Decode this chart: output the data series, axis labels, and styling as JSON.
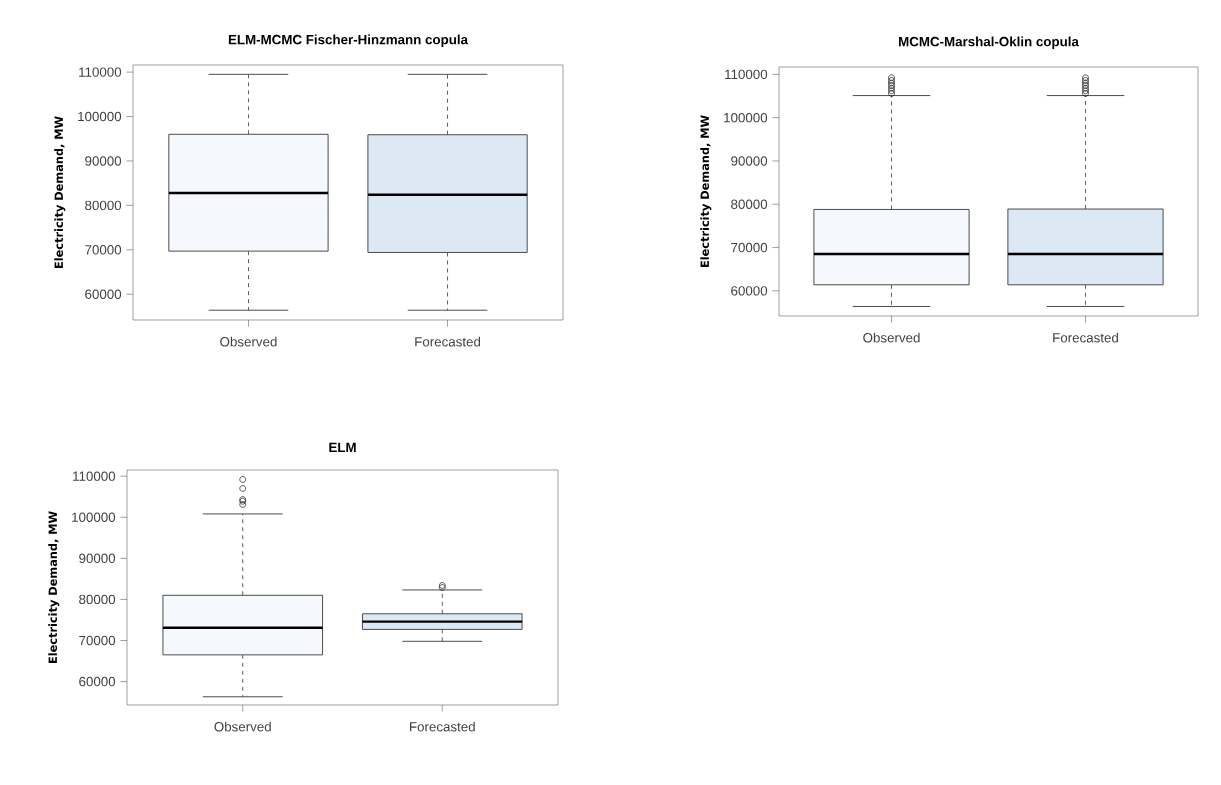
{
  "chart_data": [
    {
      "type": "box",
      "title": "ELM-MCMC Fischer-Hinzmann copula",
      "ylabel": "Electricity Demand, MW",
      "categories": [
        "Observed",
        "Forecasted"
      ],
      "ylim": [
        54200,
        111600
      ],
      "yticks": [
        60000,
        70000,
        80000,
        90000,
        100000,
        110000
      ],
      "colors": [
        "#f5f8fd",
        "#dde8f5"
      ],
      "boxes": [
        {
          "low": 56400,
          "q1": 69700,
          "median": 82800,
          "q3": 96000,
          "high": 109500
        },
        {
          "low": 56400,
          "q1": 69400,
          "median": 82400,
          "q3": 95900,
          "high": 109500
        }
      ]
    },
    {
      "type": "box",
      "title": "MCMC-Marshal-Oklin copula",
      "ylabel": "Electricity Demand, MW",
      "categories": [
        "Observed",
        "Forecasted"
      ],
      "ylim": [
        54200,
        111700
      ],
      "yticks": [
        60000,
        70000,
        80000,
        90000,
        100000,
        110000
      ],
      "colors": [
        "#f5f8fd",
        "#dde8f5"
      ],
      "boxes": [
        {
          "low": 56400,
          "q1": 61400,
          "median": 68500,
          "q3": 78800,
          "high": 105100,
          "outliers": [
            105600,
            106200,
            106800,
            107400,
            108000,
            108600,
            109200
          ]
        },
        {
          "low": 56400,
          "q1": 61400,
          "median": 68500,
          "q3": 78900,
          "high": 105100,
          "outliers": [
            105600,
            106200,
            106800,
            107400,
            108000,
            108600,
            109200
          ]
        }
      ]
    },
    {
      "type": "box",
      "title": "ELM",
      "ylabel": "Electricity Demand, MW",
      "categories": [
        "Observed",
        "Forecasted"
      ],
      "ylim": [
        54300,
        111500
      ],
      "yticks": [
        60000,
        70000,
        80000,
        90000,
        100000,
        110000
      ],
      "colors": [
        "#f5f8fd",
        "#dde8f5"
      ],
      "boxes": [
        {
          "low": 56300,
          "q1": 66500,
          "median": 73100,
          "q3": 81000,
          "high": 100800,
          "outliers": [
            103100,
            103900,
            104300,
            107000,
            109200
          ]
        },
        {
          "low": 69800,
          "q1": 72700,
          "median": 74600,
          "q3": 76500,
          "high": 82300,
          "outliers": [
            82900,
            83400
          ]
        }
      ]
    }
  ]
}
